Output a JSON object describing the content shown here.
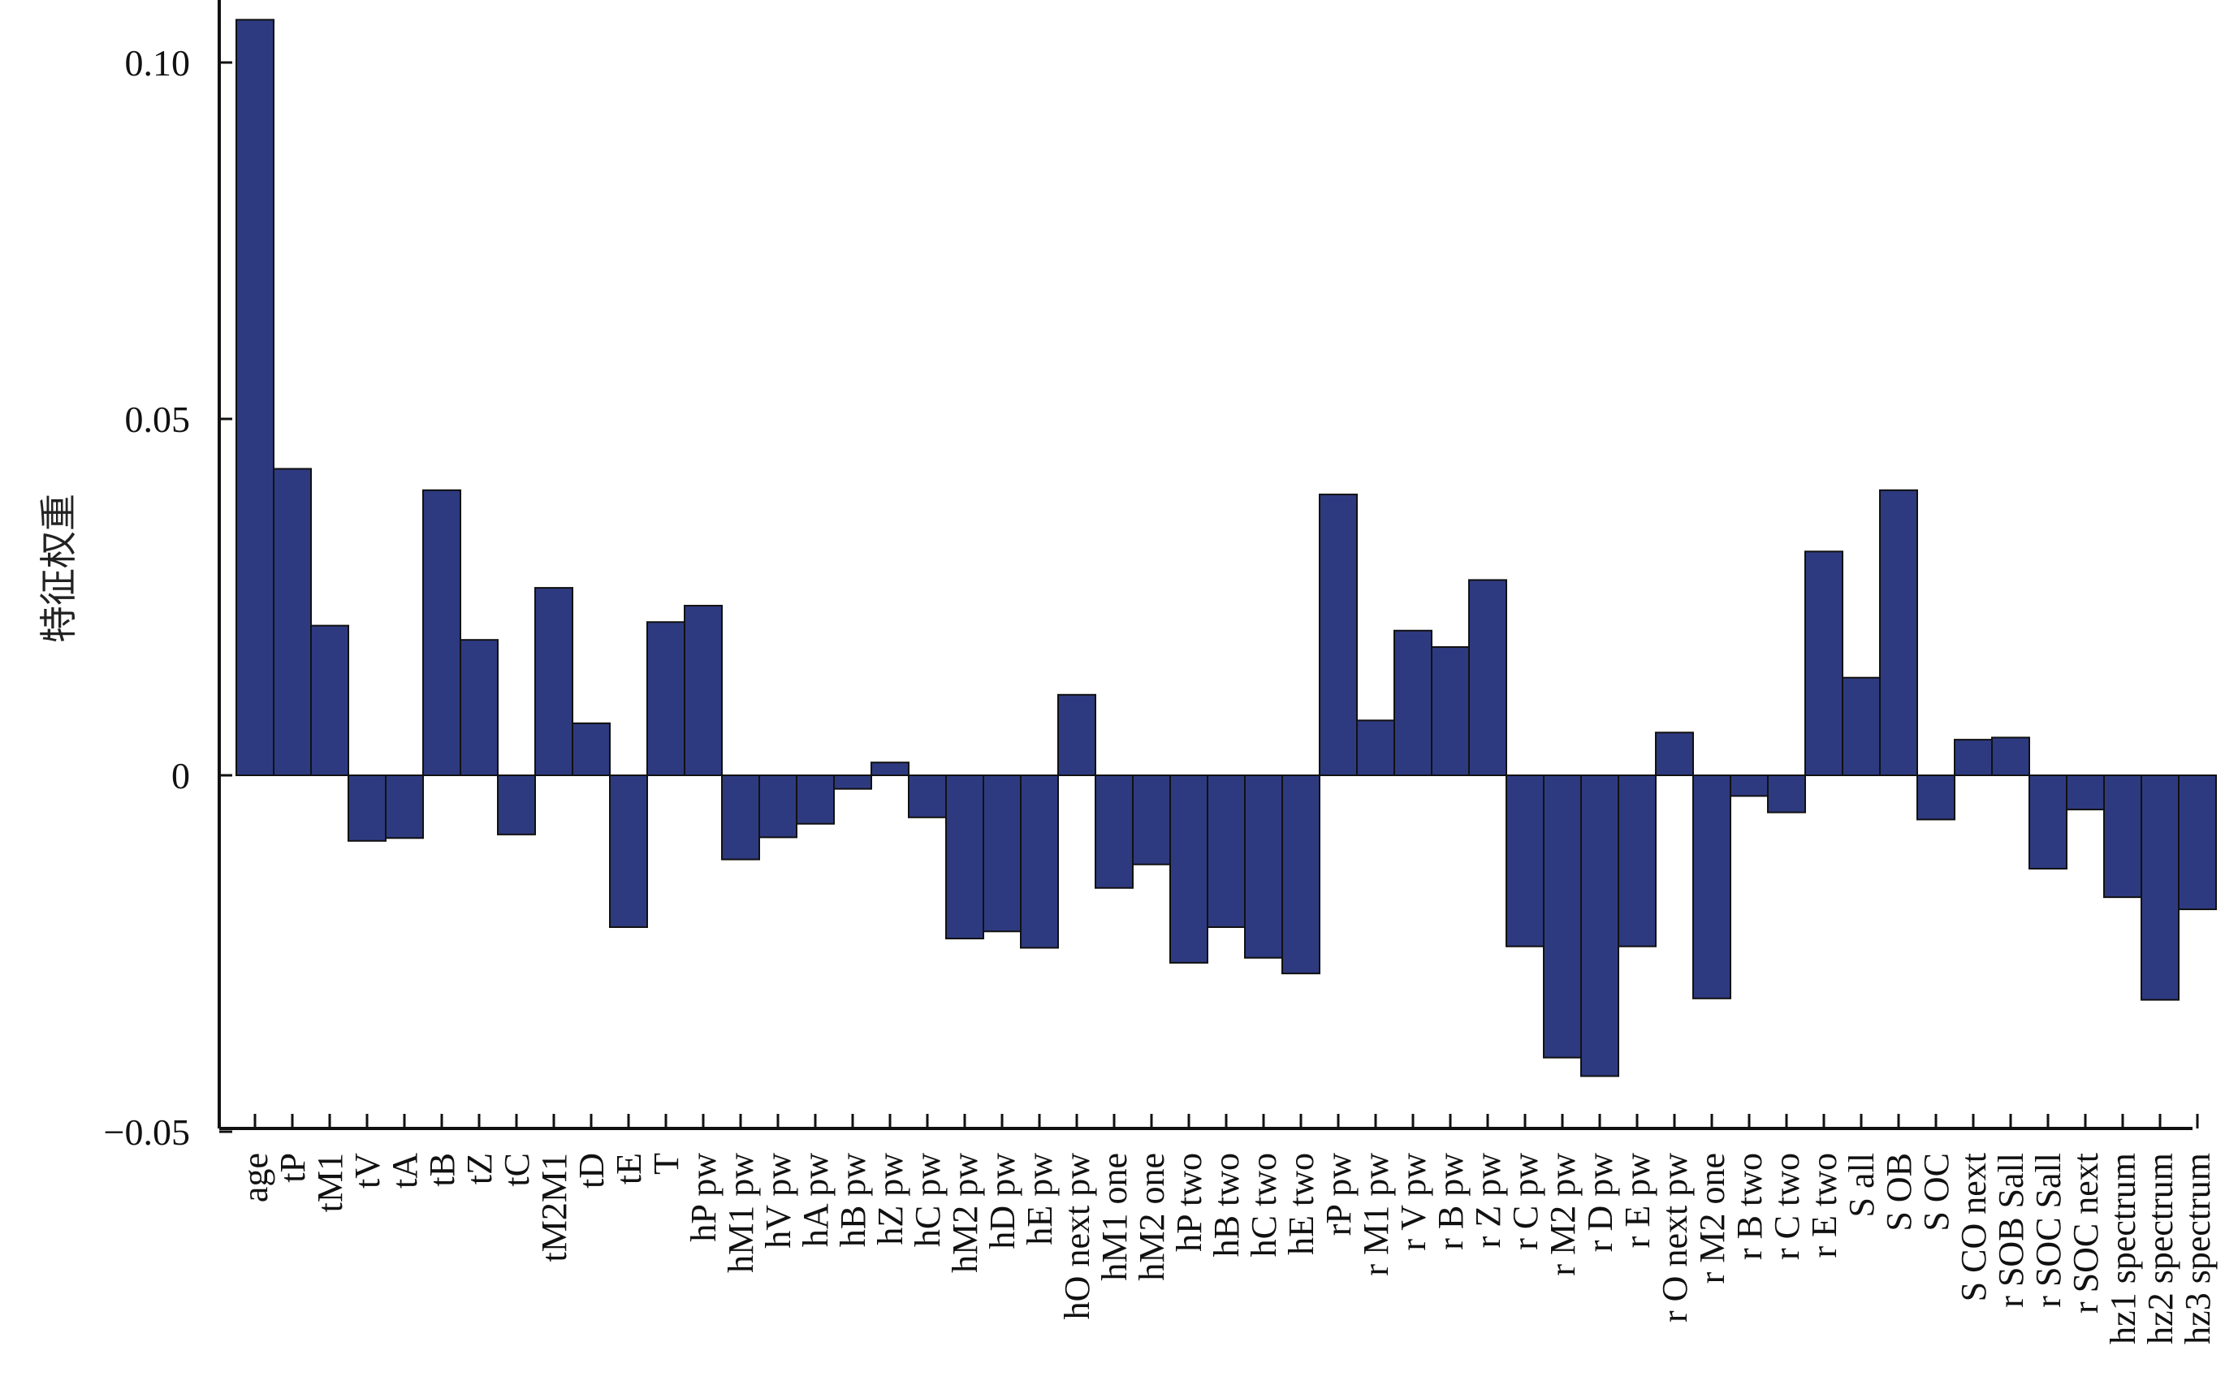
{
  "chart_data": {
    "type": "bar",
    "title": "",
    "xlabel": "",
    "ylabel": "特征权重",
    "ylim": [
      -0.05,
      0.105
    ],
    "yticks": [
      {
        "value": 0.1,
        "label": "0.10"
      },
      {
        "value": 0.05,
        "label": "0.05"
      },
      {
        "value": 0,
        "label": "0"
      },
      {
        "value": -0.05,
        "label": "−0.05"
      }
    ],
    "grid": false,
    "legend": "none",
    "bar_color": "#2e3a80",
    "categories": [
      "age",
      "tP",
      "tM1",
      "tV",
      "tA",
      "tB",
      "tZ",
      "tC",
      "tM2M1",
      "tD",
      "tE",
      "T",
      "hP pw",
      "hM1 pw",
      "hV pw",
      "hA pw",
      "hB pw",
      "hZ pw",
      "hC pw",
      "hM2 pw",
      "hD pw",
      "hE pw",
      "hO next pw",
      "hM1 one",
      "hM2 one",
      "hP two",
      "hB two",
      "hC two",
      "hE two",
      "rP pw",
      "r M1 pw",
      "r V pw",
      "r B pw",
      "r Z pw",
      "r C pw",
      "r M2 pw",
      "r D pw",
      "r E pw",
      "r O next pw",
      "r M2 one",
      "r B two",
      "r C two",
      "r E two",
      "S all",
      "S OB",
      "S OC",
      "S CO next",
      "r SOB Sall",
      "r SOC Sall",
      "r SOC next",
      "hz1 spectrum",
      "hz2 spectrum",
      "hz3 spectrum"
    ],
    "values": [
      0.106,
      0.043,
      0.021,
      -0.0092,
      -0.0088,
      0.04,
      0.019,
      -0.0083,
      0.0263,
      0.0073,
      -0.0213,
      0.0215,
      0.0238,
      -0.0118,
      -0.0087,
      -0.0068,
      -0.0019,
      0.0018,
      -0.0059,
      -0.0229,
      -0.0219,
      -0.0242,
      0.0113,
      -0.0158,
      -0.0125,
      -0.0263,
      -0.0213,
      -0.0256,
      -0.0278,
      0.0394,
      0.0077,
      0.0203,
      0.018,
      0.0274,
      -0.024,
      -0.0396,
      -0.0422,
      -0.024,
      0.006,
      -0.0313,
      -0.0029,
      -0.0052,
      0.0314,
      0.0137,
      0.04,
      -0.0062,
      0.005,
      0.0053,
      -0.0131,
      -0.0048,
      -0.0171,
      -0.0315,
      -0.0188
    ]
  }
}
